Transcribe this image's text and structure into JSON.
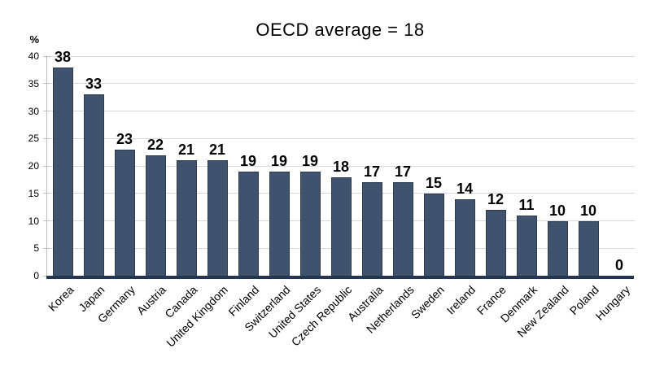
{
  "chart_data": {
    "type": "bar",
    "title": "OECD average = 18",
    "ylabel": "%",
    "xlabel": "",
    "ylim": [
      0,
      40
    ],
    "yticks": [
      0,
      5,
      10,
      15,
      20,
      25,
      30,
      35,
      40
    ],
    "grid": "horizontal",
    "legend": "none",
    "categories": [
      "Korea",
      "Japan",
      "Germany",
      "Austria",
      "Canada",
      "United Kingdom",
      "Finland",
      "Switzerland",
      "United States",
      "Czech Republic",
      "Australia",
      "Netherlands",
      "Sweden",
      "Ireland",
      "France",
      "Denmark",
      "New Zealand",
      "Poland",
      "Hungary"
    ],
    "values": [
      38,
      33,
      23,
      22,
      21,
      21,
      19,
      19,
      19,
      18,
      17,
      17,
      15,
      14,
      12,
      11,
      10,
      10,
      0
    ],
    "colors": {
      "bar_fill": "#3F536F",
      "bar_border": "#2C3A54",
      "baseline": "#233750",
      "gridline": "#D9D9D9",
      "axis_gray": "#BFBFBF",
      "text": "#000000"
    }
  }
}
